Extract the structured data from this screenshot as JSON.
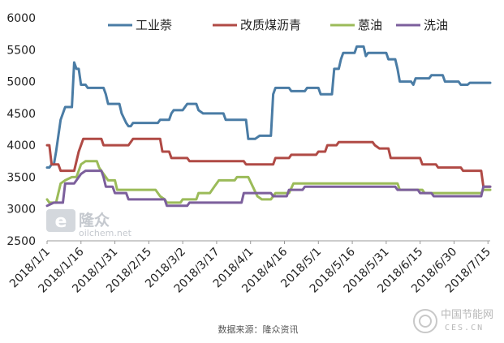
{
  "chart_data": {
    "type": "line",
    "title": "",
    "xlabel": "",
    "ylabel": "",
    "ylim": [
      2500,
      6000
    ],
    "yticks": [
      2500,
      3000,
      3500,
      4000,
      4500,
      5000,
      5500,
      6000
    ],
    "x_tick_labels": [
      "2018/1/1",
      "2018/1/16",
      "2018/1/31",
      "2018/2/15",
      "2018/3/2",
      "2018/3/17",
      "2018/4/1",
      "2018/4/16",
      "2018/5/1",
      "2018/5/16",
      "2018/5/31",
      "2018/6/15",
      "2018/6/30",
      "2018/7/15"
    ],
    "grid": false,
    "legend_position": "top",
    "series": [
      {
        "name": "工业萘",
        "color": "#4a7ca5",
        "points": [
          [
            "2018/1/1",
            3650
          ],
          [
            "2018/1/2",
            3650
          ],
          [
            "2018/1/3",
            3700
          ],
          [
            "2018/1/4",
            3700
          ],
          [
            "2018/1/5",
            3900
          ],
          [
            "2018/1/7",
            4400
          ],
          [
            "2018/1/9",
            4600
          ],
          [
            "2018/1/12",
            4600
          ],
          [
            "2018/1/13",
            5300
          ],
          [
            "2018/1/14",
            5200
          ],
          [
            "2018/1/15",
            5200
          ],
          [
            "2018/1/16",
            4950
          ],
          [
            "2018/1/18",
            4950
          ],
          [
            "2018/1/19",
            4900
          ],
          [
            "2018/1/26",
            4900
          ],
          [
            "2018/1/27",
            4800
          ],
          [
            "2018/1/28",
            4650
          ],
          [
            "2018/2/2",
            4650
          ],
          [
            "2018/2/3",
            4500
          ],
          [
            "2018/2/5",
            4350
          ],
          [
            "2018/2/6",
            4300
          ],
          [
            "2018/2/7",
            4300
          ],
          [
            "2018/2/8",
            4350
          ],
          [
            "2018/2/19",
            4350
          ],
          [
            "2018/2/20",
            4400
          ],
          [
            "2018/2/24",
            4400
          ],
          [
            "2018/2/25",
            4500
          ],
          [
            "2018/2/26",
            4550
          ],
          [
            "2018/3/2",
            4550
          ],
          [
            "2018/3/3",
            4600
          ],
          [
            "2018/3/4",
            4650
          ],
          [
            "2018/3/8",
            4650
          ],
          [
            "2018/3/9",
            4550
          ],
          [
            "2018/3/11",
            4500
          ],
          [
            "2018/3/20",
            4500
          ],
          [
            "2018/3/21",
            4400
          ],
          [
            "2018/3/30",
            4400
          ],
          [
            "2018/3/31",
            4100
          ],
          [
            "2018/4/3",
            4100
          ],
          [
            "2018/4/5",
            4150
          ],
          [
            "2018/4/10",
            4150
          ],
          [
            "2018/4/11",
            4800
          ],
          [
            "2018/4/12",
            4900
          ],
          [
            "2018/4/18",
            4900
          ],
          [
            "2018/4/19",
            4850
          ],
          [
            "2018/4/25",
            4850
          ],
          [
            "2018/4/26",
            4900
          ],
          [
            "2018/5/1",
            4900
          ],
          [
            "2018/5/2",
            4800
          ],
          [
            "2018/5/7",
            4800
          ],
          [
            "2018/5/8",
            5200
          ],
          [
            "2018/5/10",
            5200
          ],
          [
            "2018/5/11",
            5350
          ],
          [
            "2018/5/12",
            5450
          ],
          [
            "2018/5/17",
            5450
          ],
          [
            "2018/5/18",
            5550
          ],
          [
            "2018/5/21",
            5550
          ],
          [
            "2018/5/22",
            5400
          ],
          [
            "2018/5/23",
            5450
          ],
          [
            "2018/5/31",
            5450
          ],
          [
            "2018/6/1",
            5350
          ],
          [
            "2018/6/4",
            5350
          ],
          [
            "2018/6/5",
            5200
          ],
          [
            "2018/6/6",
            5000
          ],
          [
            "2018/6/11",
            5000
          ],
          [
            "2018/6/12",
            4950
          ],
          [
            "2018/6/13",
            5050
          ],
          [
            "2018/6/19",
            5050
          ],
          [
            "2018/6/20",
            5100
          ],
          [
            "2018/6/25",
            5100
          ],
          [
            "2018/6/26",
            5000
          ],
          [
            "2018/7/2",
            5000
          ],
          [
            "2018/7/3",
            4950
          ],
          [
            "2018/7/6",
            4950
          ],
          [
            "2018/7/7",
            4980
          ],
          [
            "2018/7/16",
            4980
          ]
        ]
      },
      {
        "name": "改质煤沥青",
        "color": "#b04a45",
        "points": [
          [
            "2018/1/1",
            4000
          ],
          [
            "2018/1/2",
            4000
          ],
          [
            "2018/1/3",
            3700
          ],
          [
            "2018/1/6",
            3700
          ],
          [
            "2018/1/7",
            3600
          ],
          [
            "2018/1/13",
            3600
          ],
          [
            "2018/1/15",
            3900
          ],
          [
            "2018/1/17",
            4100
          ],
          [
            "2018/1/25",
            4100
          ],
          [
            "2018/1/26",
            4000
          ],
          [
            "2018/2/6",
            4000
          ],
          [
            "2018/2/7",
            4050
          ],
          [
            "2018/2/8",
            4100
          ],
          [
            "2018/2/20",
            4100
          ],
          [
            "2018/2/21",
            3900
          ],
          [
            "2018/2/24",
            3900
          ],
          [
            "2018/2/25",
            3800
          ],
          [
            "2018/3/4",
            3800
          ],
          [
            "2018/3/5",
            3750
          ],
          [
            "2018/3/29",
            3750
          ],
          [
            "2018/3/30",
            3700
          ],
          [
            "2018/4/11",
            3700
          ],
          [
            "2018/4/12",
            3800
          ],
          [
            "2018/4/18",
            3800
          ],
          [
            "2018/4/19",
            3850
          ],
          [
            "2018/4/30",
            3850
          ],
          [
            "2018/5/1",
            3900
          ],
          [
            "2018/5/4",
            3900
          ],
          [
            "2018/5/5",
            4000
          ],
          [
            "2018/5/9",
            4000
          ],
          [
            "2018/5/10",
            4050
          ],
          [
            "2018/5/25",
            4050
          ],
          [
            "2018/5/26",
            4000
          ],
          [
            "2018/5/28",
            3950
          ],
          [
            "2018/6/1",
            3950
          ],
          [
            "2018/6/2",
            3800
          ],
          [
            "2018/6/15",
            3800
          ],
          [
            "2018/6/16",
            3700
          ],
          [
            "2018/6/22",
            3700
          ],
          [
            "2018/6/23",
            3650
          ],
          [
            "2018/7/3",
            3650
          ],
          [
            "2018/7/4",
            3600
          ],
          [
            "2018/7/12",
            3600
          ],
          [
            "2018/7/13",
            3350
          ],
          [
            "2018/7/16",
            3350
          ]
        ]
      },
      {
        "name": "蒽油",
        "color": "#9bbb59",
        "points": [
          [
            "2018/1/1",
            3150
          ],
          [
            "2018/1/2",
            3100
          ],
          [
            "2018/1/5",
            3100
          ],
          [
            "2018/1/7",
            3400
          ],
          [
            "2018/1/9",
            3450
          ],
          [
            "2018/1/12",
            3500
          ],
          [
            "2018/1/14",
            3500
          ],
          [
            "2018/1/16",
            3700
          ],
          [
            "2018/1/18",
            3750
          ],
          [
            "2018/1/23",
            3750
          ],
          [
            "2018/1/24",
            3650
          ],
          [
            "2018/1/26",
            3550
          ],
          [
            "2018/1/28",
            3450
          ],
          [
            "2018/1/31",
            3450
          ],
          [
            "2018/2/1",
            3300
          ],
          [
            "2018/2/18",
            3300
          ],
          [
            "2018/2/20",
            3200
          ],
          [
            "2018/2/22",
            3150
          ],
          [
            "2018/2/23",
            3100
          ],
          [
            "2018/3/1",
            3100
          ],
          [
            "2018/3/2",
            3150
          ],
          [
            "2018/3/8",
            3150
          ],
          [
            "2018/3/9",
            3250
          ],
          [
            "2018/3/14",
            3250
          ],
          [
            "2018/3/16",
            3350
          ],
          [
            "2018/3/18",
            3450
          ],
          [
            "2018/3/25",
            3450
          ],
          [
            "2018/3/26",
            3500
          ],
          [
            "2018/3/31",
            3500
          ],
          [
            "2018/4/2",
            3350
          ],
          [
            "2018/4/4",
            3200
          ],
          [
            "2018/4/6",
            3150
          ],
          [
            "2018/4/10",
            3150
          ],
          [
            "2018/4/12",
            3250
          ],
          [
            "2018/4/18",
            3250
          ],
          [
            "2018/4/20",
            3400
          ],
          [
            "2018/6/5",
            3400
          ],
          [
            "2018/6/6",
            3300
          ],
          [
            "2018/6/16",
            3300
          ],
          [
            "2018/6/17",
            3250
          ],
          [
            "2018/7/12",
            3250
          ],
          [
            "2018/7/13",
            3300
          ],
          [
            "2018/7/16",
            3300
          ]
        ]
      },
      {
        "name": "洗油",
        "color": "#7c5f9c",
        "points": [
          [
            "2018/1/1",
            3050
          ],
          [
            "2018/1/4",
            3100
          ],
          [
            "2018/1/8",
            3100
          ],
          [
            "2018/1/9",
            3400
          ],
          [
            "2018/1/13",
            3400
          ],
          [
            "2018/1/16",
            3550
          ],
          [
            "2018/1/18",
            3600
          ],
          [
            "2018/1/25",
            3600
          ],
          [
            "2018/1/26",
            3500
          ],
          [
            "2018/1/27",
            3350
          ],
          [
            "2018/1/30",
            3350
          ],
          [
            "2018/1/31",
            3250
          ],
          [
            "2018/2/5",
            3250
          ],
          [
            "2018/2/6",
            3150
          ],
          [
            "2018/2/22",
            3150
          ],
          [
            "2018/2/23",
            3050
          ],
          [
            "2018/3/4",
            3050
          ],
          [
            "2018/3/5",
            3100
          ],
          [
            "2018/3/28",
            3100
          ],
          [
            "2018/3/29",
            3250
          ],
          [
            "2018/4/10",
            3250
          ],
          [
            "2018/4/11",
            3200
          ],
          [
            "2018/4/17",
            3200
          ],
          [
            "2018/4/18",
            3300
          ],
          [
            "2018/4/24",
            3300
          ],
          [
            "2018/4/25",
            3350
          ],
          [
            "2018/6/4",
            3350
          ],
          [
            "2018/6/5",
            3300
          ],
          [
            "2018/6/14",
            3300
          ],
          [
            "2018/6/15",
            3250
          ],
          [
            "2018/6/20",
            3250
          ],
          [
            "2018/6/21",
            3200
          ],
          [
            "2018/7/12",
            3200
          ],
          [
            "2018/7/13",
            3350
          ],
          [
            "2018/7/16",
            3350
          ]
        ]
      }
    ]
  },
  "watermark": {
    "brand": "隆众",
    "site": "oilchem.net"
  },
  "source": "数据来源：隆众资讯",
  "corner_watermark": {
    "cn": "中国节能网",
    "en": "CES.CN"
  }
}
